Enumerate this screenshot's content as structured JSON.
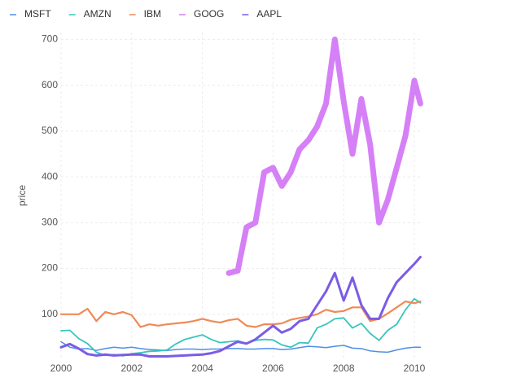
{
  "chart_data": {
    "type": "line",
    "y_label": "price",
    "x": [
      2000,
      2000.25,
      2000.5,
      2000.75,
      2001,
      2001.25,
      2001.5,
      2001.75,
      2002,
      2002.25,
      2002.5,
      2002.75,
      2003,
      2003.25,
      2003.5,
      2003.75,
      2004,
      2004.25,
      2004.5,
      2004.75,
      2005,
      2005.25,
      2005.5,
      2005.75,
      2006,
      2006.25,
      2006.5,
      2006.75,
      2007,
      2007.25,
      2007.5,
      2007.75,
      2008,
      2008.25,
      2008.5,
      2008.75,
      2009,
      2009.25,
      2009.5,
      2009.75,
      2010,
      2010.17
    ],
    "xlim": [
      2000,
      2010.2
    ],
    "xticks": [
      2000,
      2002,
      2004,
      2006,
      2008,
      2010
    ],
    "ylim": [
      0,
      715
    ],
    "yticks": [
      100,
      200,
      300,
      400,
      500,
      600,
      700
    ],
    "grid": true,
    "legend": "top-left",
    "series": [
      {
        "name": "MSFT",
        "color": "#4f8fe6",
        "values": [
          40,
          28,
          24,
          25,
          21,
          25,
          28,
          26,
          28,
          25,
          23,
          22,
          21,
          23,
          24,
          24,
          23,
          24,
          24,
          25,
          25,
          24,
          24,
          25,
          25,
          23,
          24,
          27,
          30,
          29,
          27,
          30,
          32,
          26,
          25,
          20,
          18,
          17,
          22,
          26,
          28,
          28
        ]
      },
      {
        "name": "AMZN",
        "color": "#35c6bd",
        "values": [
          64,
          65,
          47,
          36,
          17,
          10,
          12,
          9,
          14,
          16,
          19,
          20,
          22,
          35,
          45,
          50,
          55,
          45,
          38,
          40,
          42,
          36,
          43,
          45,
          44,
          33,
          28,
          38,
          37,
          70,
          78,
          90,
          92,
          70,
          80,
          58,
          43,
          65,
          78,
          110,
          134,
          125
        ]
      },
      {
        "name": "IBM",
        "color": "#ef8a56",
        "values": [
          100,
          100,
          100,
          112,
          85,
          105,
          100,
          105,
          98,
          72,
          78,
          75,
          78,
          80,
          82,
          85,
          90,
          85,
          82,
          87,
          90,
          75,
          72,
          78,
          78,
          80,
          88,
          92,
          95,
          100,
          110,
          105,
          107,
          115,
          115,
          85,
          90,
          102,
          115,
          128,
          124,
          128
        ]
      },
      {
        "name": "GOOG",
        "color": "#d580f7",
        "values": [
          null,
          null,
          null,
          null,
          null,
          null,
          null,
          null,
          null,
          null,
          null,
          null,
          null,
          null,
          null,
          null,
          null,
          null,
          null,
          190,
          195,
          290,
          300,
          410,
          420,
          380,
          410,
          460,
          480,
          510,
          560,
          700,
          565,
          450,
          570,
          470,
          300,
          350,
          420,
          490,
          610,
          560
        ]
      },
      {
        "name": "AAPL",
        "color": "#7b5ce6",
        "values": [
          28,
          35,
          25,
          13,
          10,
          12,
          10,
          11,
          12,
          12,
          8,
          8,
          8,
          9,
          10,
          11,
          12,
          15,
          20,
          30,
          40,
          36,
          45,
          60,
          75,
          60,
          68,
          85,
          90,
          120,
          150,
          190,
          130,
          180,
          120,
          90,
          90,
          135,
          170,
          190,
          210,
          225
        ]
      }
    ]
  }
}
